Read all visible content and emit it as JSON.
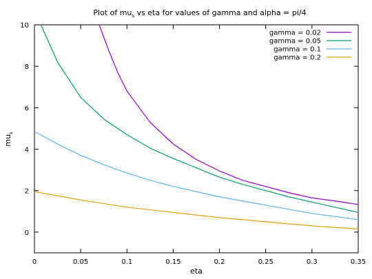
{
  "chart_data": {
    "type": "line",
    "title": "Plot of mu",
    "title_sub": "s",
    "title_rest": " vs eta for values of gamma and alpha = pi/4",
    "xlabel": "eta",
    "ylabel": "mu",
    "ylabel_sub": "s",
    "xlim": [
      0,
      0.35
    ],
    "ylim": [
      -1,
      10
    ],
    "xticks": [
      0,
      0.05,
      0.1,
      0.15,
      0.2,
      0.25,
      0.3,
      0.35
    ],
    "xtick_labels": [
      "0",
      "0.05",
      "0.1",
      "0.15",
      "0.2",
      "0.25",
      "0.3",
      "0.35"
    ],
    "yticks": [
      0,
      2,
      4,
      6,
      8,
      10
    ],
    "ytick_labels": [
      "0",
      "2",
      "4",
      "6",
      "8",
      "10"
    ],
    "grid": false,
    "legend_position": "top-right",
    "series": [
      {
        "name": "gamma = 0.02",
        "color": "#9400d3",
        "x": [
          0.07,
          0.08,
          0.09,
          0.1,
          0.125,
          0.15,
          0.175,
          0.2,
          0.225,
          0.25,
          0.275,
          0.3,
          0.325,
          0.35
        ],
        "y": [
          10.0,
          8.8,
          7.7,
          6.8,
          5.3,
          4.25,
          3.5,
          2.95,
          2.5,
          2.2,
          1.9,
          1.65,
          1.5,
          1.33
        ]
      },
      {
        "name": "gamma = 0.05",
        "color": "#009e73",
        "x": [
          0.007,
          0.025,
          0.05,
          0.075,
          0.1,
          0.125,
          0.15,
          0.175,
          0.2,
          0.225,
          0.25,
          0.275,
          0.3,
          0.325,
          0.35
        ],
        "y": [
          10.0,
          8.2,
          6.5,
          5.45,
          4.7,
          4.05,
          3.55,
          3.1,
          2.65,
          2.3,
          2.0,
          1.7,
          1.45,
          1.2,
          0.95
        ]
      },
      {
        "name": "gamma = 0.1",
        "color": "#56b4e9",
        "x": [
          0,
          0.025,
          0.05,
          0.075,
          0.1,
          0.125,
          0.15,
          0.175,
          0.2,
          0.225,
          0.25,
          0.275,
          0.3,
          0.325,
          0.35
        ],
        "y": [
          4.85,
          4.25,
          3.7,
          3.25,
          2.85,
          2.5,
          2.2,
          1.95,
          1.7,
          1.5,
          1.3,
          1.1,
          0.9,
          0.75,
          0.6
        ]
      },
      {
        "name": "gamma = 0.2",
        "color": "#e69f00",
        "x": [
          0,
          0.05,
          0.1,
          0.15,
          0.2,
          0.25,
          0.3,
          0.35
        ],
        "y": [
          1.95,
          1.55,
          1.2,
          0.95,
          0.7,
          0.5,
          0.3,
          0.15
        ]
      }
    ]
  }
}
